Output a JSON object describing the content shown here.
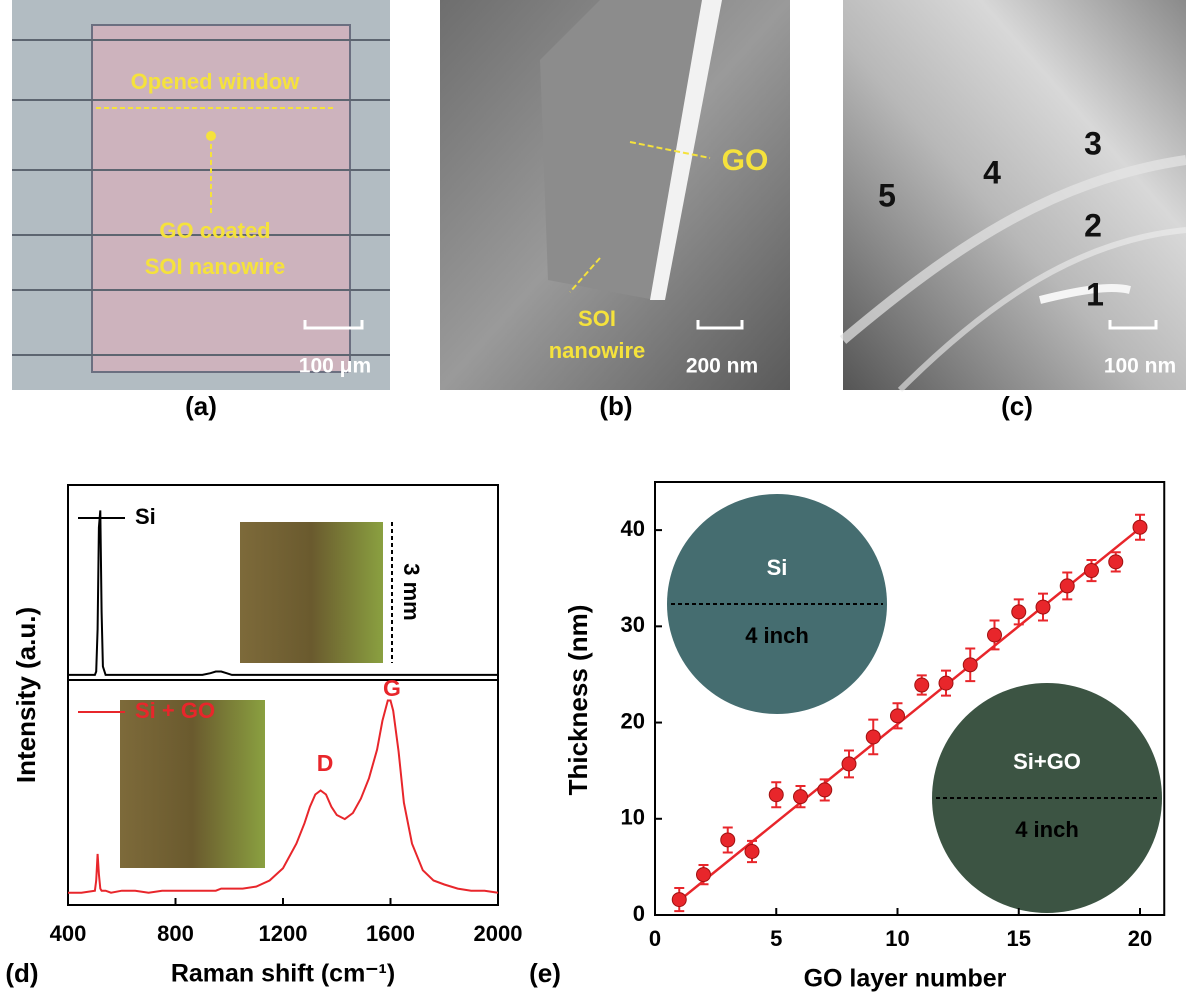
{
  "panels": [
    {
      "label": "(a)",
      "annotations": [
        "Opened window",
        "GO coated",
        "SOI nanowire"
      ],
      "scale_bar": "100 μm"
    },
    {
      "label": "(b)",
      "annotations": [
        "GO",
        "SOI",
        "nanowire"
      ],
      "scale_bar": "200 nm"
    },
    {
      "label": "(c)",
      "annotations": [
        "5",
        "4",
        "3",
        "2",
        "1"
      ],
      "scale_bar": "100 nm"
    }
  ],
  "chart_data": [
    {
      "type": "line",
      "label": "(d)",
      "xlabel": "Raman shift (cm⁻¹)",
      "ylabel": "Intensity (a.u.)",
      "xlim": [
        400,
        2000
      ],
      "xticks": [
        400,
        800,
        1200,
        1600,
        2000
      ],
      "x": [
        400,
        450,
        500,
        505,
        510,
        515,
        520,
        525,
        530,
        540,
        560,
        600,
        650,
        700,
        750,
        800,
        850,
        900,
        930,
        950,
        970,
        990,
        1010,
        1050,
        1100,
        1150,
        1200,
        1250,
        1280,
        1300,
        1320,
        1340,
        1360,
        1380,
        1400,
        1430,
        1460,
        1490,
        1520,
        1550,
        1570,
        1590,
        1600,
        1610,
        1630,
        1650,
        1680,
        1720,
        1760,
        1800,
        1850,
        1900,
        1950,
        2000
      ],
      "series": [
        {
          "name": "Si",
          "color": "#000000",
          "ylim": [
            0,
            1.15
          ],
          "values": [
            0.03,
            0.03,
            0.03,
            0.05,
            0.3,
            0.9,
            1.0,
            0.4,
            0.08,
            0.03,
            0.03,
            0.03,
            0.03,
            0.03,
            0.03,
            0.03,
            0.03,
            0.03,
            0.04,
            0.05,
            0.05,
            0.04,
            0.03,
            0.03,
            0.03,
            0.03,
            0.03,
            0.03,
            0.03,
            0.03,
            0.03,
            0.03,
            0.03,
            0.03,
            0.03,
            0.03,
            0.03,
            0.03,
            0.03,
            0.03,
            0.03,
            0.03,
            0.03,
            0.03,
            0.03,
            0.03,
            0.03,
            0.03,
            0.03,
            0.03,
            0.03,
            0.03,
            0.03,
            0.03
          ]
        },
        {
          "name": "Si + GO",
          "color": "#e8262b",
          "ylim": [
            0,
            1.1
          ],
          "values": [
            0.06,
            0.06,
            0.07,
            0.12,
            0.25,
            0.15,
            0.08,
            0.07,
            0.07,
            0.07,
            0.06,
            0.07,
            0.07,
            0.06,
            0.07,
            0.07,
            0.07,
            0.07,
            0.07,
            0.07,
            0.08,
            0.08,
            0.08,
            0.08,
            0.09,
            0.12,
            0.18,
            0.3,
            0.4,
            0.48,
            0.54,
            0.56,
            0.54,
            0.48,
            0.44,
            0.42,
            0.45,
            0.52,
            0.62,
            0.76,
            0.9,
            1.0,
            1.0,
            0.95,
            0.75,
            0.5,
            0.3,
            0.17,
            0.12,
            0.1,
            0.08,
            0.07,
            0.07,
            0.06
          ]
        }
      ],
      "annotations": [
        "D",
        "G",
        "3 mm"
      ]
    },
    {
      "type": "scatter",
      "label": "(e)",
      "xlabel": "GO layer number",
      "ylabel": "Thickness (nm)",
      "xlim": [
        0,
        21
      ],
      "ylim": [
        0,
        45
      ],
      "xticks": [
        0,
        5,
        10,
        15,
        20
      ],
      "yticks": [
        0,
        10,
        20,
        30,
        40
      ],
      "x": [
        1,
        2,
        3,
        4,
        5,
        6,
        7,
        8,
        9,
        10,
        11,
        12,
        13,
        14,
        15,
        16,
        17,
        18,
        19,
        20
      ],
      "series": [
        {
          "color": "#e8262b",
          "values": [
            1.6,
            4.2,
            7.8,
            6.6,
            12.5,
            12.3,
            13.0,
            15.7,
            18.5,
            20.7,
            23.9,
            24.1,
            26.0,
            29.1,
            31.5,
            32.0,
            34.2,
            35.8,
            36.7,
            40.3
          ],
          "errors": [
            1.2,
            1.0,
            1.3,
            1.1,
            1.3,
            1.1,
            1.1,
            1.4,
            1.8,
            1.3,
            1.0,
            1.3,
            1.7,
            1.5,
            1.3,
            1.4,
            1.4,
            1.1,
            1.0,
            1.3
          ]
        }
      ],
      "fit": {
        "x": [
          1,
          20
        ],
        "values": [
          1.5,
          40.2
        ]
      },
      "insets": [
        {
          "label": "Si",
          "size": "4 inch"
        },
        {
          "label": "Si+GO",
          "size": "4 inch"
        }
      ]
    }
  ]
}
